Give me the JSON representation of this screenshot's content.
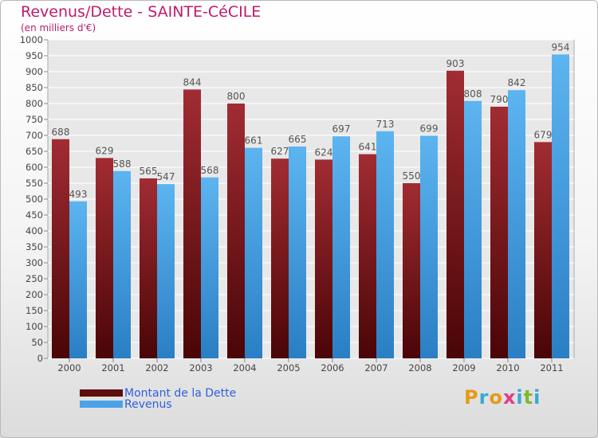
{
  "header": {
    "title": "Revenus/Dette - SAINTE-CéCILE",
    "subtitle": "(en milliers d'€)"
  },
  "chart_data": {
    "type": "bar",
    "title": "Revenus/Dette - SAINTE-CéCILE",
    "subtitle": "(en milliers d'€)",
    "categories": [
      "2000",
      "2001",
      "2002",
      "2003",
      "2004",
      "2005",
      "2006",
      "2007",
      "2008",
      "2009",
      "2010",
      "2011"
    ],
    "series": [
      {
        "name": "Montant de la Dette",
        "color": "#7a1416",
        "values": [
          688,
          629,
          565,
          844,
          800,
          627,
          624,
          641,
          550,
          903,
          790,
          679
        ]
      },
      {
        "name": "Revenus",
        "color": "#4aa3e6",
        "values": [
          493,
          588,
          547,
          568,
          661,
          665,
          697,
          713,
          699,
          808,
          842,
          954
        ]
      }
    ],
    "ylim": [
      0,
      1000
    ],
    "yticks": [
      0,
      50,
      100,
      150,
      200,
      250,
      300,
      350,
      400,
      450,
      500,
      550,
      600,
      650,
      700,
      750,
      800,
      850,
      900,
      950,
      1000
    ],
    "grid": true,
    "legend": "bottom-left"
  },
  "legend": {
    "items": [
      {
        "label": "Montant de la Dette",
        "color": "#7a1416"
      },
      {
        "label": "Revenus",
        "color": "#4aa3e6"
      }
    ]
  },
  "logo": {
    "letters": [
      {
        "char": "P",
        "color": "#e69a16"
      },
      {
        "char": "r",
        "color": "#3aa7d6"
      },
      {
        "char": "o",
        "color": "#e69a16"
      },
      {
        "char": "x",
        "color": "#e03c8a"
      },
      {
        "char": "i",
        "color": "#3aa7d6"
      },
      {
        "char": "t",
        "color": "#7cba2d"
      },
      {
        "char": "i",
        "color": "#3aa7d6"
      }
    ]
  }
}
